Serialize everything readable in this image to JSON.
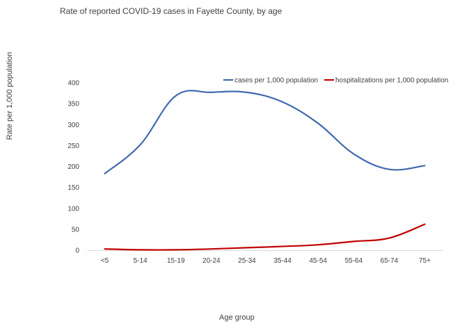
{
  "chart_data": {
    "type": "line",
    "title": "Rate of reported COVID-19 cases in Fayette County, by age",
    "xlabel": "Age group",
    "ylabel": "Rate per 1,000 population",
    "categories": [
      "<5",
      "5-14",
      "15-19",
      "20-24",
      "25-34",
      "35-44",
      "45-54",
      "55-64",
      "65-74",
      "75+"
    ],
    "ylim": [
      0,
      400
    ],
    "yticks": [
      0,
      50,
      100,
      150,
      200,
      250,
      300,
      350,
      400
    ],
    "grid": false,
    "legend_position": "top-right",
    "series": [
      {
        "name": "cases per 1,000 population",
        "color": "#4169b0",
        "values": [
          183,
          252,
          369,
          377,
          377,
          354,
          303,
          230,
          193,
          202
        ]
      },
      {
        "name": "hospitalizations per 1,000 population",
        "color": "#c00000",
        "values": [
          3,
          1,
          1,
          3,
          6,
          9,
          13,
          21,
          29,
          62
        ]
      }
    ]
  }
}
